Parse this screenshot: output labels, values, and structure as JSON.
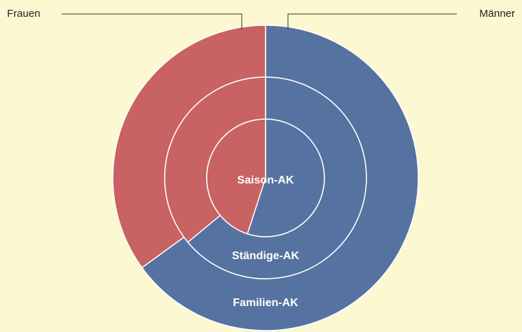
{
  "chart_data": {
    "type": "pie",
    "categories": [
      "Saison-AK",
      "Ständige-AK",
      "Familien-AK"
    ],
    "series": [
      {
        "name": "Frauen",
        "color": "#c96262",
        "values": [
          45,
          36,
          35
        ]
      },
      {
        "name": "Männer",
        "color": "#5672a1",
        "values": [
          55,
          64,
          65
        ]
      }
    ]
  }
}
